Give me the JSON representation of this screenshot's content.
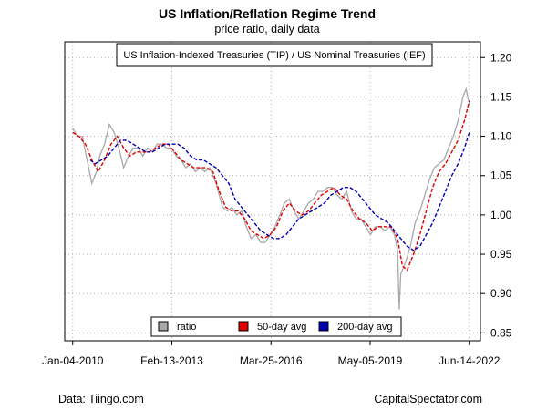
{
  "chart_data": {
    "type": "line",
    "title": "US Inflation/Reflation Regime Trend",
    "subtitle": "price ratio, daily data",
    "series_box_label": "US Inflation-Indexed Treasuries (TIP) / US Nominal Treasuries (IEF)",
    "x_tick_labels": [
      "Jan-04-2010",
      "Feb-13-2013",
      "Mar-25-2016",
      "May-05-2019",
      "Jun-14-2022"
    ],
    "y_ticks": [
      0.85,
      0.9,
      0.95,
      1.0,
      1.05,
      1.1,
      1.15,
      1.2
    ],
    "y_tick_labels": [
      "0.85",
      "0.90",
      "0.95",
      "1.00",
      "1.05",
      "1.10",
      "1.15",
      "1.20"
    ],
    "ylim": [
      0.84,
      1.22
    ],
    "xlim": [
      2009.75,
      2022.8
    ],
    "grid": true,
    "y_axis_side": "right",
    "legend_placement": "bottom-center",
    "series": [
      {
        "name": "ratio",
        "color": "#a8a8a8",
        "style": "solid",
        "x": [
          2010.0,
          2010.15,
          2010.3,
          2010.45,
          2010.6,
          2010.75,
          2010.85,
          2011.0,
          2011.15,
          2011.3,
          2011.45,
          2011.6,
          2011.75,
          2011.9,
          2012.05,
          2012.2,
          2012.35,
          2012.5,
          2012.65,
          2012.8,
          2012.95,
          2013.1,
          2013.25,
          2013.4,
          2013.55,
          2013.7,
          2013.85,
          2014.0,
          2014.15,
          2014.3,
          2014.5,
          2014.7,
          2014.85,
          2015.0,
          2015.15,
          2015.3,
          2015.45,
          2015.6,
          2015.75,
          2015.9,
          2016.05,
          2016.2,
          2016.35,
          2016.5,
          2016.65,
          2016.8,
          2016.95,
          2017.1,
          2017.25,
          2017.4,
          2017.55,
          2017.7,
          2017.85,
          2018.0,
          2018.15,
          2018.3,
          2018.45,
          2018.6,
          2018.75,
          2018.9,
          2019.05,
          2019.2,
          2019.35,
          2019.5,
          2019.65,
          2019.8,
          2019.95,
          2020.1,
          2020.2,
          2020.25,
          2020.3,
          2020.45,
          2020.6,
          2020.75,
          2020.9,
          2021.05,
          2021.2,
          2021.35,
          2021.5,
          2021.65,
          2021.8,
          2021.95,
          2022.1,
          2022.25,
          2022.35,
          2022.45
        ],
        "values": [
          1.11,
          1.1,
          1.1,
          1.07,
          1.04,
          1.055,
          1.075,
          1.09,
          1.115,
          1.105,
          1.085,
          1.06,
          1.075,
          1.085,
          1.085,
          1.075,
          1.085,
          1.08,
          1.09,
          1.09,
          1.085,
          1.085,
          1.075,
          1.07,
          1.06,
          1.065,
          1.055,
          1.06,
          1.055,
          1.06,
          1.04,
          1.01,
          1.005,
          1.01,
          1.0,
          1.005,
          0.985,
          0.97,
          0.975,
          0.965,
          0.965,
          0.975,
          0.985,
          1.0,
          1.015,
          1.02,
          1.005,
          0.995,
          1.005,
          1.015,
          1.02,
          1.03,
          1.03,
          1.035,
          1.035,
          1.025,
          1.02,
          1.03,
          1.005,
          0.995,
          0.995,
          0.985,
          0.975,
          0.985,
          0.985,
          0.98,
          0.985,
          0.975,
          0.955,
          0.88,
          0.925,
          0.94,
          0.96,
          0.99,
          1.005,
          1.025,
          1.045,
          1.06,
          1.065,
          1.07,
          1.085,
          1.1,
          1.12,
          1.15,
          1.16,
          1.14
        ]
      },
      {
        "name": "50-day avg",
        "color": "#e00000",
        "style": "dashed",
        "x": [
          2010.0,
          2010.2,
          2010.4,
          2010.6,
          2010.8,
          2011.0,
          2011.2,
          2011.4,
          2011.6,
          2011.8,
          2012.0,
          2012.2,
          2012.4,
          2012.6,
          2012.8,
          2013.0,
          2013.2,
          2013.4,
          2013.6,
          2013.8,
          2014.0,
          2014.2,
          2014.4,
          2014.6,
          2014.8,
          2015.0,
          2015.2,
          2015.4,
          2015.6,
          2015.8,
          2016.0,
          2016.2,
          2016.4,
          2016.6,
          2016.8,
          2017.0,
          2017.2,
          2017.4,
          2017.6,
          2017.8,
          2018.0,
          2018.2,
          2018.4,
          2018.6,
          2018.8,
          2019.0,
          2019.2,
          2019.4,
          2019.6,
          2019.8,
          2020.0,
          2020.2,
          2020.35,
          2020.5,
          2020.7,
          2020.9,
          2021.1,
          2021.3,
          2021.5,
          2021.7,
          2021.9,
          2022.1,
          2022.3,
          2022.45
        ],
        "values": [
          1.105,
          1.1,
          1.09,
          1.07,
          1.055,
          1.07,
          1.09,
          1.1,
          1.085,
          1.075,
          1.08,
          1.08,
          1.08,
          1.085,
          1.09,
          1.09,
          1.08,
          1.07,
          1.065,
          1.06,
          1.06,
          1.06,
          1.055,
          1.03,
          1.01,
          1.005,
          1.005,
          0.995,
          0.98,
          0.975,
          0.97,
          0.975,
          0.985,
          1.005,
          1.015,
          1.005,
          1.0,
          1.005,
          1.015,
          1.025,
          1.03,
          1.035,
          1.025,
          1.02,
          1.005,
          0.995,
          0.99,
          0.98,
          0.985,
          0.985,
          0.985,
          0.97,
          0.935,
          0.93,
          0.95,
          0.975,
          1.005,
          1.035,
          1.055,
          1.065,
          1.08,
          1.095,
          1.12,
          1.145
        ]
      },
      {
        "name": "200-day avg",
        "color": "#0000b0",
        "style": "dashed",
        "x": [
          2010.55,
          2010.7,
          2010.9,
          2011.1,
          2011.3,
          2011.5,
          2011.7,
          2011.9,
          2012.1,
          2012.3,
          2012.5,
          2012.7,
          2012.9,
          2013.1,
          2013.3,
          2013.5,
          2013.7,
          2013.9,
          2014.1,
          2014.3,
          2014.5,
          2014.7,
          2014.9,
          2015.1,
          2015.3,
          2015.5,
          2015.7,
          2015.9,
          2016.1,
          2016.3,
          2016.5,
          2016.7,
          2016.9,
          2017.1,
          2017.3,
          2017.5,
          2017.7,
          2017.9,
          2018.1,
          2018.3,
          2018.5,
          2018.7,
          2018.9,
          2019.1,
          2019.3,
          2019.5,
          2019.7,
          2019.9,
          2020.1,
          2020.3,
          2020.5,
          2020.7,
          2020.9,
          2021.1,
          2021.3,
          2021.5,
          2021.7,
          2021.9,
          2022.1,
          2022.3,
          2022.45
        ],
        "values": [
          1.07,
          1.065,
          1.07,
          1.075,
          1.085,
          1.095,
          1.095,
          1.09,
          1.085,
          1.08,
          1.08,
          1.085,
          1.09,
          1.09,
          1.09,
          1.085,
          1.075,
          1.07,
          1.07,
          1.065,
          1.06,
          1.05,
          1.04,
          1.02,
          1.01,
          1.0,
          0.99,
          0.98,
          0.975,
          0.97,
          0.97,
          0.975,
          0.985,
          0.995,
          1.0,
          1.005,
          1.01,
          1.015,
          1.025,
          1.03,
          1.035,
          1.035,
          1.03,
          1.02,
          1.01,
          1.0,
          0.995,
          0.99,
          0.98,
          0.97,
          0.96,
          0.955,
          0.96,
          0.975,
          0.99,
          1.01,
          1.03,
          1.05,
          1.065,
          1.085,
          1.105
        ]
      }
    ]
  },
  "footer": {
    "source": "Data: Tiingo.com",
    "credit": "CapitalSpectator.com"
  }
}
